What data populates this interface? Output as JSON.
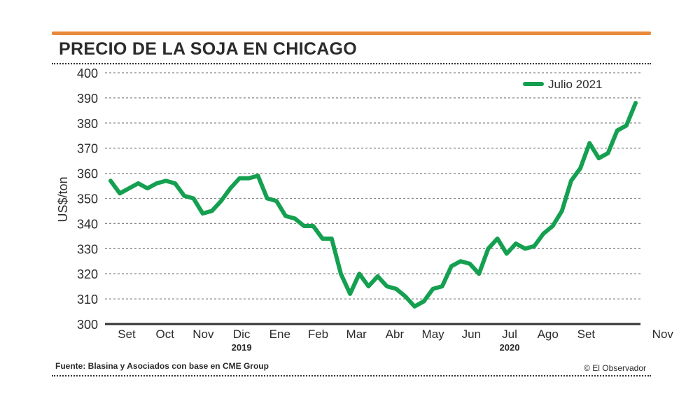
{
  "header": {
    "title": "PRECIO DE LA SOJA EN CHICAGO"
  },
  "footer": {
    "source": "Fuente: Blasina y Asociados con base en CME Group",
    "credit": "© El Observador"
  },
  "colors": {
    "accent": "#e8893a",
    "series": "#14a050",
    "text": "#2b2b2b"
  },
  "chart_data": {
    "type": "line",
    "title": "PRECIO DE LA SOJA EN CHICAGO",
    "ylabel": "US$/ton",
    "xlabel": "",
    "ylim": [
      300,
      400
    ],
    "yticks": [
      300,
      310,
      320,
      330,
      340,
      350,
      360,
      370,
      380,
      390,
      400
    ],
    "grid": true,
    "legend_position": "top-right",
    "x_tick_labels": [
      "Set",
      "Oct",
      "Nov",
      "Dic",
      "Ene",
      "Feb",
      "Mar",
      "Abr",
      "May",
      "Jun",
      "Jul",
      "Ago",
      "Set",
      "Nov"
    ],
    "x_tick_months": [
      0,
      1,
      2,
      3,
      4,
      5,
      6,
      7,
      8,
      9,
      10,
      11,
      12,
      14
    ],
    "year_labels": [
      {
        "label": "2019",
        "under": "Dic"
      },
      {
        "label": "2020",
        "under": "Jul"
      }
    ],
    "series": [
      {
        "name": "Julio 2021",
        "color": "#14a050",
        "values": [
          357,
          352,
          354,
          356,
          354,
          356,
          357,
          356,
          351,
          350,
          344,
          345,
          349,
          354,
          358,
          358,
          359,
          350,
          349,
          343,
          342,
          339,
          339,
          334,
          334,
          320,
          312,
          320,
          315,
          319,
          315,
          314,
          311,
          307,
          309,
          314,
          315,
          323,
          325,
          324,
          320,
          330,
          334,
          328,
          332,
          330,
          331,
          336,
          339,
          345,
          357,
          362,
          372,
          366,
          368,
          377,
          379,
          388
        ]
      }
    ]
  }
}
